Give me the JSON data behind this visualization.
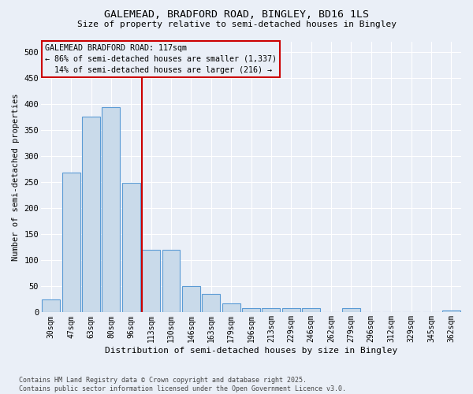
{
  "title_line1": "GALEMEAD, BRADFORD ROAD, BINGLEY, BD16 1LS",
  "title_line2": "Size of property relative to semi-detached houses in Bingley",
  "xlabel": "Distribution of semi-detached houses by size in Bingley",
  "ylabel": "Number of semi-detached properties",
  "categories": [
    "30sqm",
    "47sqm",
    "63sqm",
    "80sqm",
    "96sqm",
    "113sqm",
    "130sqm",
    "146sqm",
    "163sqm",
    "179sqm",
    "196sqm",
    "213sqm",
    "229sqm",
    "246sqm",
    "262sqm",
    "279sqm",
    "296sqm",
    "312sqm",
    "329sqm",
    "345sqm",
    "362sqm"
  ],
  "values": [
    25,
    268,
    375,
    393,
    249,
    120,
    120,
    50,
    35,
    18,
    8,
    8,
    8,
    8,
    0,
    8,
    0,
    0,
    0,
    0,
    4
  ],
  "bar_color": "#c9daea",
  "bar_edge_color": "#5b9bd5",
  "highlight_index": 5,
  "highlight_color": "#cc0000",
  "annotation_line1": "GALEMEAD BRADFORD ROAD: 117sqm",
  "annotation_line2": "← 86% of semi-detached houses are smaller (1,337)",
  "annotation_line3": "  14% of semi-detached houses are larger (216) →",
  "ylim": [
    0,
    520
  ],
  "yticks": [
    0,
    50,
    100,
    150,
    200,
    250,
    300,
    350,
    400,
    450,
    500
  ],
  "bg_color": "#eaeff7",
  "grid_color": "#ffffff",
  "footer_line1": "Contains HM Land Registry data © Crown copyright and database right 2025.",
  "footer_line2": "Contains public sector information licensed under the Open Government Licence v3.0."
}
